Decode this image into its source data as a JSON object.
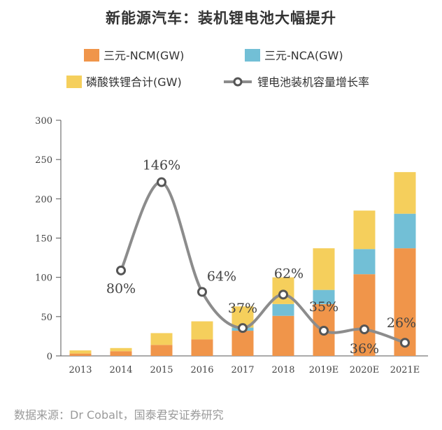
{
  "title": "新能源汽车：装机锂电池大幅提升",
  "source": "数据来源：Dr Cobalt，国泰君安证券研究",
  "chart_data": {
    "type": "bar",
    "stacked": true,
    "categories": [
      "2013",
      "2014",
      "2015",
      "2016",
      "2017",
      "2018",
      "2019E",
      "2020E",
      "2021E"
    ],
    "ylim": [
      0,
      300
    ],
    "yticks": [
      0,
      50,
      100,
      150,
      200,
      250,
      300
    ],
    "series": [
      {
        "name": "三元-NCM(GW)",
        "color": "#f0954a",
        "values": [
          3,
          6,
          14,
          21,
          32,
          51,
          66,
          104,
          137
        ]
      },
      {
        "name": "三元-NCA(GW)",
        "color": "#72bfd6",
        "values": [
          0,
          0,
          0,
          0,
          4,
          15,
          18,
          32,
          44
        ]
      },
      {
        "name": "磷酸铁锂合计(GW)",
        "color": "#f5cf5c",
        "values": [
          4,
          4,
          15,
          23,
          27,
          34,
          53,
          49,
          53
        ]
      }
    ],
    "line": {
      "name": "锂电池装机容量增长率",
      "color": "#8c8c8c",
      "categories": [
        "2014",
        "2015",
        "2016",
        "2017",
        "2018",
        "2019E",
        "2020E",
        "2021E"
      ],
      "values": [
        80,
        146,
        64,
        37,
        62,
        35,
        36,
        26
      ],
      "labels": [
        "80%",
        "146%",
        "64%",
        "37%",
        "62%",
        "35%",
        "36%",
        "26%"
      ]
    },
    "legend_position": "top"
  }
}
